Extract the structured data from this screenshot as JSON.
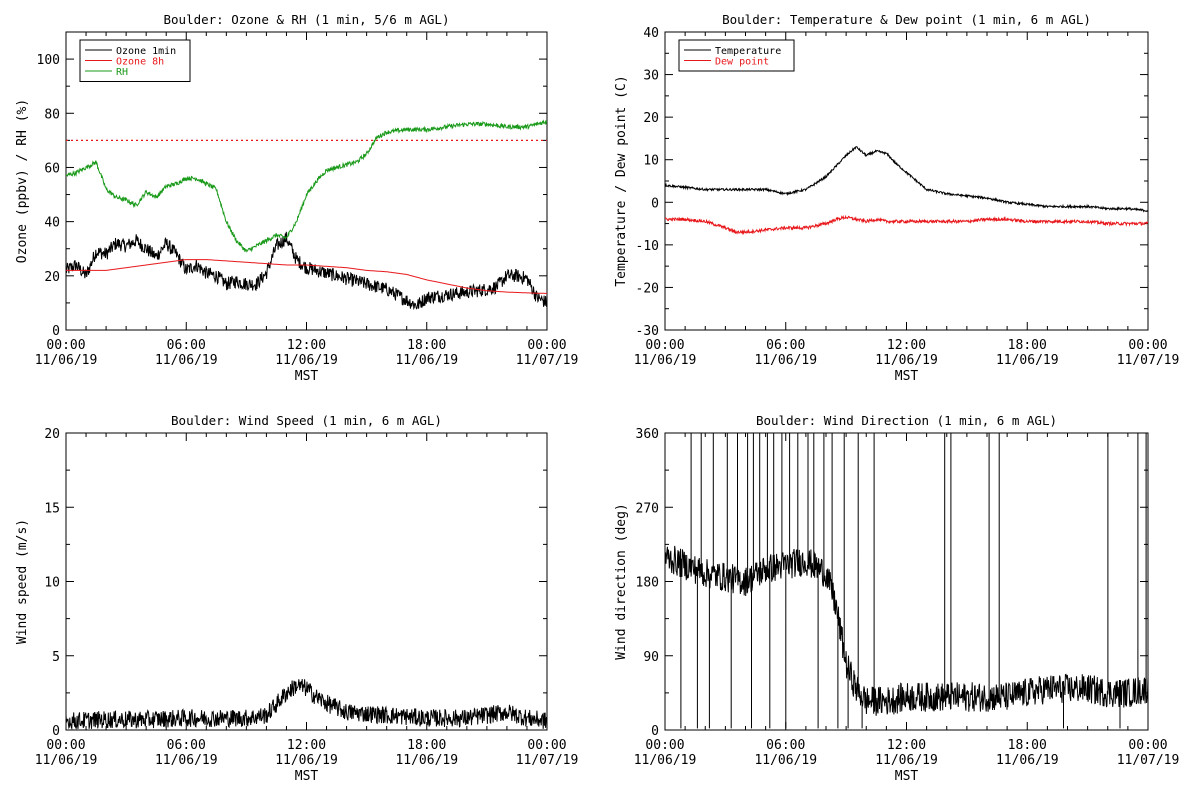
{
  "chart_data": [
    {
      "type": "line",
      "title": "Boulder: Ozone & RH (1 min, 5/6 m AGL)",
      "ylabel": "Ozone (ppbv) / RH (%)",
      "xlabel": "MST",
      "xticks": [
        "00:00\n11/06/19",
        "06:00\n11/06/19",
        "12:00\n11/06/19",
        "18:00\n11/06/19",
        "00:00\n11/07/19"
      ],
      "xlim_hours": [
        0,
        24
      ],
      "ylim": [
        0,
        110
      ],
      "yticks": [
        0,
        20,
        40,
        60,
        80,
        100
      ],
      "legend": [
        "Ozone 1min",
        "Ozone 8h",
        "RH"
      ],
      "legend_position": "top-left",
      "reference_line": {
        "y": 70,
        "color": "#e8171b",
        "style": "dotted"
      },
      "series": [
        {
          "name": "Ozone 1min",
          "color": "#000000",
          "noise": 2.5,
          "hours": [
            0,
            0.5,
            1,
            1.5,
            2,
            2.5,
            3,
            3.5,
            4,
            4.5,
            5,
            5.5,
            6,
            6.5,
            7,
            7.5,
            8,
            8.5,
            9,
            9.5,
            10,
            10.5,
            11,
            11.5,
            12,
            13,
            14,
            15,
            16,
            17,
            17.5,
            18,
            19,
            20,
            21,
            21.5,
            22,
            22.5,
            23,
            23.5,
            24
          ],
          "values": [
            22,
            24,
            20,
            29,
            28,
            32,
            31,
            33,
            30,
            27,
            32,
            28,
            22,
            24,
            21,
            20,
            17,
            18,
            17,
            17,
            21,
            31,
            34,
            26,
            23,
            21,
            19,
            17,
            15,
            11,
            9,
            12,
            13,
            14,
            15,
            16,
            20,
            20,
            19,
            12,
            10
          ]
        },
        {
          "name": "Ozone 8h",
          "color": "#e8171b",
          "noise": 0,
          "hours": [
            0,
            1,
            2,
            3,
            4,
            5,
            6,
            7,
            8,
            9,
            10,
            11,
            12,
            13,
            14,
            15,
            16,
            17,
            18,
            19,
            20,
            21,
            22,
            23,
            24
          ],
          "values": [
            22,
            22,
            22,
            23,
            24,
            25,
            26,
            26,
            25.5,
            25,
            24.5,
            24,
            24,
            23.5,
            23,
            22,
            21.5,
            20.5,
            18.5,
            17,
            15.5,
            14.5,
            14,
            13.7,
            13.5
          ]
        },
        {
          "name": "RH",
          "color": "#1a9a1a",
          "noise": 0.8,
          "hours": [
            0,
            0.5,
            1,
            1.5,
            2,
            2.5,
            3,
            3.5,
            4,
            4.5,
            5,
            5.5,
            6,
            6.5,
            7,
            7.5,
            8,
            8.5,
            9,
            9.5,
            10,
            10.5,
            11,
            11.5,
            12,
            12.5,
            13,
            14,
            14.5,
            15,
            15.5,
            16,
            17,
            18,
            19,
            20,
            21,
            22,
            23,
            24
          ],
          "values": [
            57,
            58,
            60,
            62,
            52,
            49,
            48,
            46,
            51,
            49,
            53,
            54,
            56,
            56,
            54,
            52,
            40,
            33,
            29,
            31,
            33,
            35,
            34,
            40,
            50,
            55,
            59,
            61,
            62,
            65,
            71,
            73,
            74,
            74,
            75,
            76,
            76,
            75,
            75,
            77
          ]
        }
      ]
    },
    {
      "type": "line",
      "title": "Boulder: Temperature & Dew point (1 min, 6 m AGL)",
      "ylabel": "Temperature / Dew point (C)",
      "xlabel": "MST",
      "xticks": [
        "00:00\n11/06/19",
        "06:00\n11/06/19",
        "12:00\n11/06/19",
        "18:00\n11/06/19",
        "00:00\n11/07/19"
      ],
      "xlim_hours": [
        0,
        24
      ],
      "ylim": [
        -30,
        40
      ],
      "yticks": [
        -30,
        -20,
        -10,
        0,
        10,
        20,
        30,
        40
      ],
      "legend": [
        "Temperature",
        "Dew point"
      ],
      "legend_position": "top-left",
      "series": [
        {
          "name": "Temperature",
          "color": "#000000",
          "noise": 0.25,
          "hours": [
            0,
            1,
            2,
            3,
            4,
            5,
            6,
            6.5,
            7,
            7.5,
            8,
            8.5,
            9,
            9.5,
            10,
            10.5,
            11,
            11.5,
            12,
            12.5,
            13,
            14,
            15,
            16,
            17,
            18,
            19,
            20,
            21,
            22,
            23,
            24
          ],
          "values": [
            4,
            3.5,
            3,
            3,
            3,
            3,
            2,
            2.5,
            3,
            4.5,
            6,
            8.5,
            11,
            13,
            11,
            12,
            11.5,
            9,
            7,
            5,
            3,
            2,
            1.5,
            1,
            0,
            -0.5,
            -1,
            -1,
            -1,
            -1.5,
            -1.5,
            -2
          ]
        },
        {
          "name": "Dew point",
          "color": "#e8171b",
          "noise": 0.35,
          "hours": [
            0,
            1,
            2,
            3,
            3.5,
            4,
            5,
            6,
            7,
            8,
            8.5,
            9,
            9.5,
            10,
            10.5,
            11,
            12,
            13,
            14,
            15,
            16,
            17,
            18,
            19,
            20,
            21,
            22,
            23,
            24
          ],
          "values": [
            -4,
            -4,
            -4.5,
            -6,
            -7,
            -7,
            -6.5,
            -6,
            -6,
            -5,
            -4,
            -3.5,
            -4,
            -4.5,
            -4,
            -4.5,
            -4.5,
            -4.5,
            -4.5,
            -4.5,
            -4,
            -4,
            -4.5,
            -4.5,
            -4.5,
            -4.5,
            -5,
            -5,
            -5
          ]
        }
      ]
    },
    {
      "type": "line",
      "title": "Boulder: Wind Speed (1 min, 6 m AGL)",
      "ylabel": "Wind speed (m/s)",
      "xlabel": "MST",
      "xticks": [
        "00:00\n11/06/19",
        "06:00\n11/06/19",
        "12:00\n11/06/19",
        "18:00\n11/06/19",
        "00:00\n11/07/19"
      ],
      "xlim_hours": [
        0,
        24
      ],
      "ylim": [
        0,
        20
      ],
      "yticks": [
        0,
        5,
        10,
        15,
        20
      ],
      "series": [
        {
          "name": "",
          "color": "#000000",
          "noise": 0.6,
          "hours": [
            0,
            2,
            4,
            6,
            8,
            9,
            10,
            11,
            11.5,
            12,
            12.5,
            13,
            14,
            16,
            18,
            20,
            21,
            22,
            23,
            24
          ],
          "values": [
            0.6,
            0.7,
            0.7,
            0.8,
            0.8,
            0.8,
            1.0,
            2.5,
            3.0,
            2.8,
            2.2,
            1.8,
            1.2,
            1.0,
            0.8,
            0.8,
            1.0,
            1.2,
            0.8,
            0.6
          ]
        }
      ]
    },
    {
      "type": "line",
      "title": "Boulder: Wind Direction (1 min, 6 m AGL)",
      "ylabel": "Wind direction (deg)",
      "xlabel": "MST",
      "xticks": [
        "00:00\n11/06/19",
        "06:00\n11/06/19",
        "12:00\n11/06/19",
        "18:00\n11/06/19",
        "00:00\n11/07/19"
      ],
      "xlim_hours": [
        0,
        24
      ],
      "ylim": [
        0,
        360
      ],
      "yticks": [
        0,
        90,
        180,
        270,
        360
      ],
      "series": [
        {
          "name": "",
          "color": "#000000",
          "noise": 18,
          "hours": [
            0,
            1,
            2,
            3,
            4,
            5,
            6,
            7,
            8,
            8.5,
            9,
            9.5,
            10,
            11,
            12,
            13,
            14,
            15,
            16,
            17,
            18,
            19,
            20,
            21,
            22,
            23,
            24
          ],
          "values": [
            210,
            200,
            190,
            185,
            180,
            195,
            200,
            205,
            190,
            150,
            80,
            50,
            35,
            35,
            40,
            40,
            40,
            40,
            40,
            40,
            45,
            50,
            50,
            50,
            45,
            45,
            50
          ],
          "spikes_hours": [
            1.3,
            1.8,
            2.4,
            2.7,
            3.1,
            3.6,
            4.1,
            4.4,
            4.7,
            5.1,
            5.4,
            5.8,
            6.2,
            6.6,
            7.1,
            7.4,
            7.9,
            8.3,
            8.9,
            9.6,
            10.4,
            13.9,
            14.2,
            16.1,
            16.6,
            21.3,
            22.0,
            23.5,
            23.9
          ],
          "dropouts_hours": [
            0.8,
            1.6,
            2.2,
            3.3,
            3.9,
            4.3,
            5.2,
            6.0,
            7.6,
            8.6,
            9.1,
            9.8,
            15.3,
            19.8,
            22.6,
            23.7
          ]
        }
      ]
    }
  ]
}
